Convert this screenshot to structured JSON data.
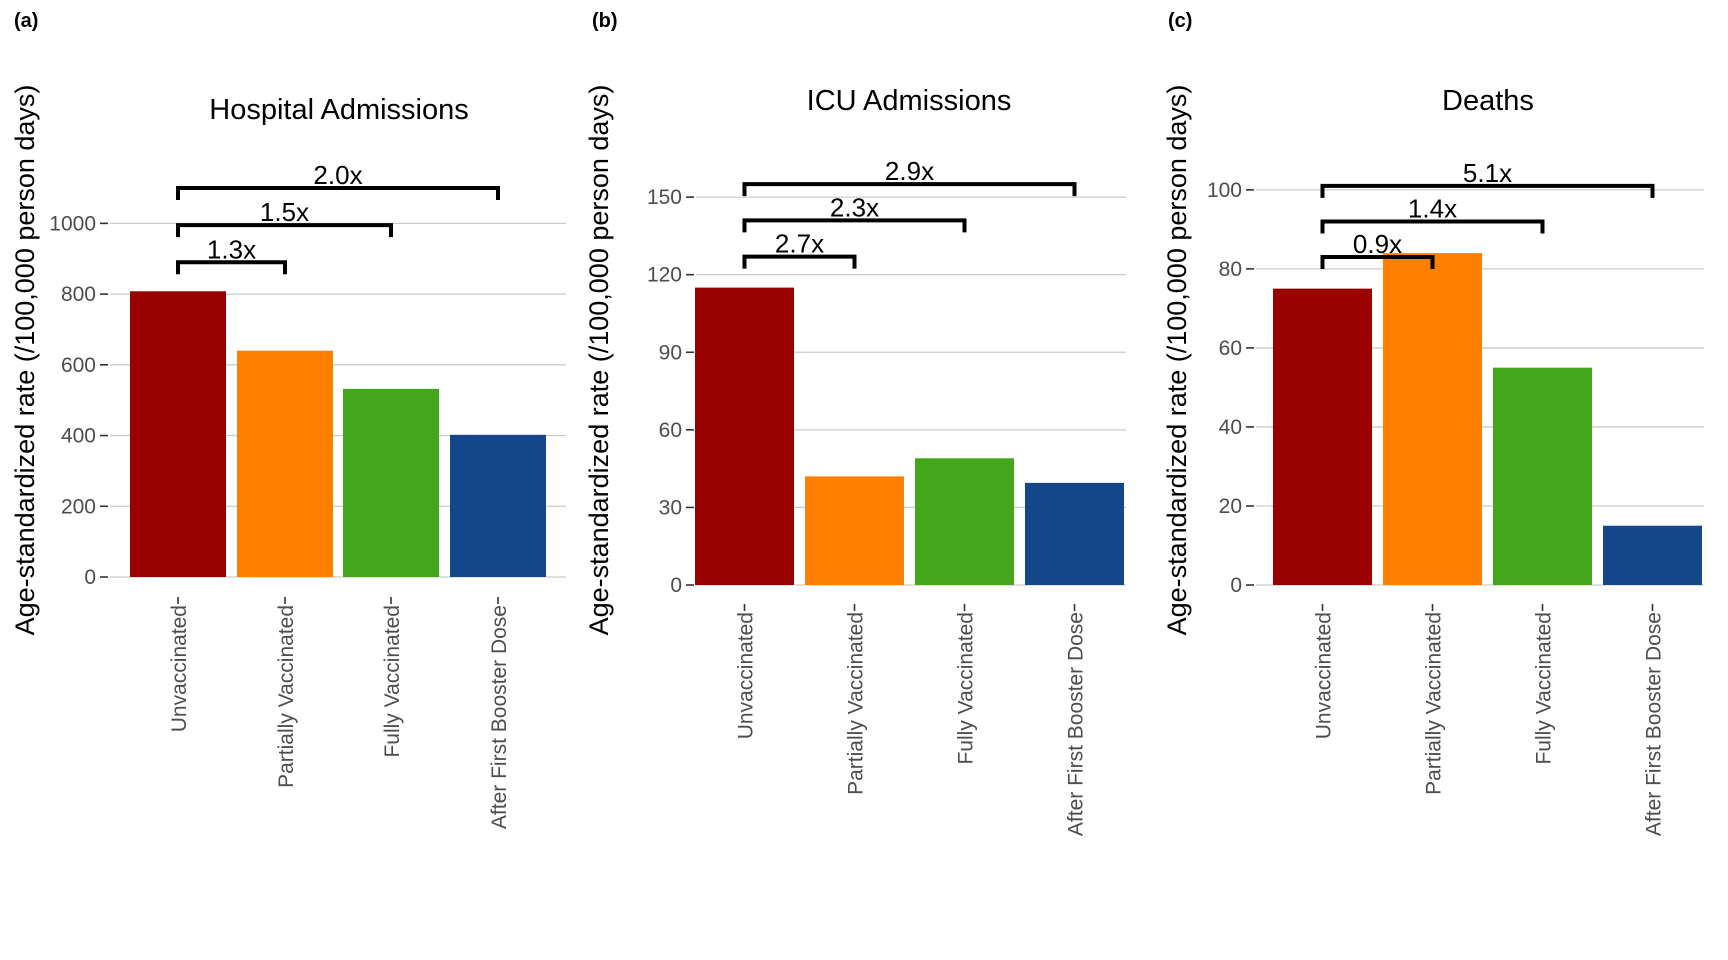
{
  "chart_data": [
    {
      "type": "bar",
      "panel_label": "(a)",
      "title": "Hospital Admissions",
      "ylabel": "Age-standardized rate (/100,000 person days)",
      "categories": [
        "Unvaccinated",
        "Partially Vaccinated",
        "Fully Vaccinated",
        "After First Booster Dose"
      ],
      "values": [
        808,
        640,
        532,
        402
      ],
      "ylim": [
        0,
        1100
      ],
      "yticks": [
        0,
        200,
        400,
        600,
        800,
        1000
      ],
      "grid": true,
      "colors": [
        "#990000",
        "#ff8000",
        "#44a61b",
        "#14478a"
      ],
      "comparisons": [
        {
          "label": "1.3x",
          "from": "Unvaccinated",
          "to": "Partially Vaccinated",
          "level": 890
        },
        {
          "label": "1.5x",
          "from": "Unvaccinated",
          "to": "Fully Vaccinated",
          "level": 995
        },
        {
          "label": "2.0x",
          "from": "Unvaccinated",
          "to": "After First Booster Dose",
          "level": 1100
        }
      ]
    },
    {
      "type": "bar",
      "panel_label": "(b)",
      "title": "ICU Admissions",
      "ylabel": "Age-standardized rate (/100,000 person days)",
      "categories": [
        "Unvaccinated",
        "Partially Vaccinated",
        "Fully Vaccinated",
        "After First Booster Dose"
      ],
      "values": [
        115,
        42,
        49,
        39.5
      ],
      "ylim": [
        0,
        157
      ],
      "yticks": [
        0,
        30,
        60,
        90,
        120,
        150
      ],
      "grid": true,
      "colors": [
        "#990000",
        "#ff8000",
        "#44a61b",
        "#14478a"
      ],
      "comparisons": [
        {
          "label": "2.7x",
          "from": "Unvaccinated",
          "to": "Partially Vaccinated",
          "level": 127
        },
        {
          "label": "2.3x",
          "from": "Unvaccinated",
          "to": "Fully Vaccinated",
          "level": 141
        },
        {
          "label": "2.9x",
          "from": "Unvaccinated",
          "to": "After First Booster Dose",
          "level": 155
        }
      ]
    },
    {
      "type": "bar",
      "panel_label": "(c)",
      "title": "Deaths",
      "ylabel": "Age-standardized rate (/100,000 person days)",
      "categories": [
        "Unvaccinated",
        "Partially Vaccinated",
        "Fully Vaccinated",
        "After First Booster Dose"
      ],
      "values": [
        75,
        84,
        55,
        15
      ],
      "ylim": [
        0,
        103
      ],
      "yticks": [
        0,
        20,
        40,
        60,
        80,
        100
      ],
      "grid": true,
      "colors": [
        "#990000",
        "#ff8000",
        "#44a61b",
        "#14478a"
      ],
      "comparisons": [
        {
          "label": "0.9x",
          "from": "Unvaccinated",
          "to": "Partially Vaccinated",
          "level": 83
        },
        {
          "label": "1.4x",
          "from": "Unvaccinated",
          "to": "Fully Vaccinated",
          "level": 92
        },
        {
          "label": "5.1x",
          "from": "Unvaccinated",
          "to": "After First Booster Dose",
          "level": 101
        }
      ]
    }
  ]
}
